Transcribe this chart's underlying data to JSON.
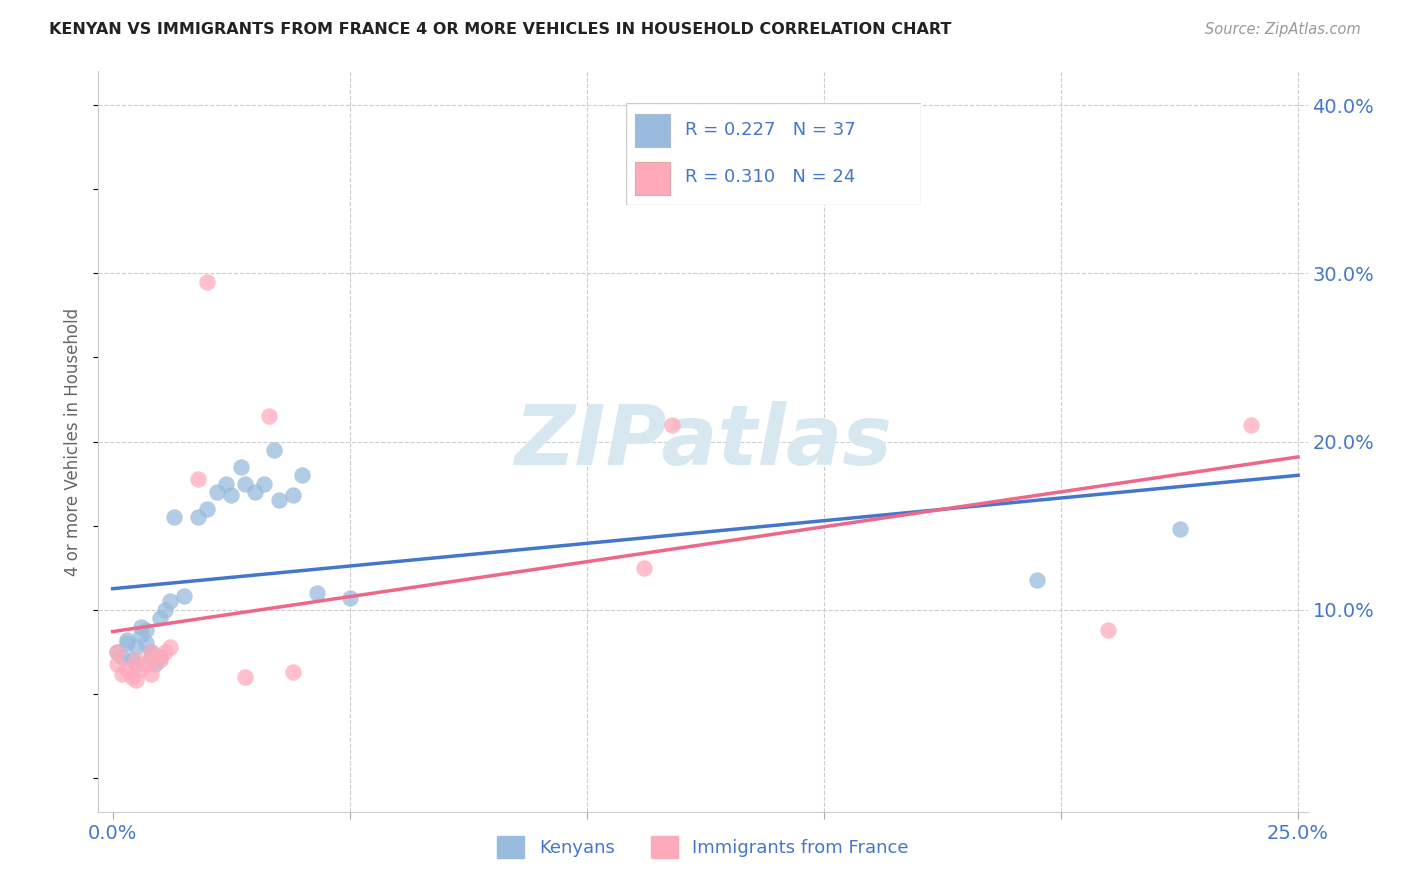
{
  "title": "KENYAN VS IMMIGRANTS FROM FRANCE 4 OR MORE VEHICLES IN HOUSEHOLD CORRELATION CHART",
  "source": "Source: ZipAtlas.com",
  "ylabel_label": "4 or more Vehicles in Household",
  "legend_label1": "Kenyans",
  "legend_label2": "Immigrants from France",
  "R1": 0.227,
  "N1": 37,
  "R2": 0.31,
  "N2": 24,
  "blue_scatter": "#99BBDD",
  "pink_scatter": "#FFAABB",
  "line_blue": "#4477CC",
  "line_pink": "#EE6688",
  "text_blue": "#4477CC",
  "grid_color": "#CCCCCC",
  "background_color": "#FFFFFF",
  "xlim": [
    0.0,
    0.25
  ],
  "ylim": [
    0.0,
    0.42
  ],
  "kenyan_x": [
    0.001,
    0.002,
    0.003,
    0.003,
    0.004,
    0.005,
    0.005,
    0.006,
    0.006,
    0.007,
    0.007,
    0.008,
    0.008,
    0.009,
    0.01,
    0.01,
    0.011,
    0.012,
    0.013,
    0.015,
    0.018,
    0.02,
    0.022,
    0.024,
    0.025,
    0.027,
    0.028,
    0.03,
    0.032,
    0.034,
    0.035,
    0.038,
    0.04,
    0.043,
    0.05,
    0.195,
    0.225
  ],
  "kenyan_y": [
    0.075,
    0.072,
    0.08,
    0.082,
    0.07,
    0.068,
    0.078,
    0.085,
    0.09,
    0.08,
    0.088,
    0.072,
    0.075,
    0.068,
    0.072,
    0.095,
    0.1,
    0.105,
    0.155,
    0.108,
    0.155,
    0.16,
    0.17,
    0.175,
    0.168,
    0.185,
    0.175,
    0.17,
    0.175,
    0.195,
    0.165,
    0.168,
    0.18,
    0.11,
    0.107,
    0.118,
    0.148
  ],
  "france_x": [
    0.001,
    0.001,
    0.002,
    0.003,
    0.004,
    0.005,
    0.005,
    0.006,
    0.007,
    0.008,
    0.008,
    0.009,
    0.01,
    0.011,
    0.012,
    0.018,
    0.02,
    0.028,
    0.033,
    0.038,
    0.112,
    0.118,
    0.21,
    0.24
  ],
  "france_y": [
    0.068,
    0.075,
    0.062,
    0.065,
    0.06,
    0.058,
    0.07,
    0.065,
    0.068,
    0.062,
    0.075,
    0.072,
    0.07,
    0.075,
    0.078,
    0.178,
    0.295,
    0.06,
    0.215,
    0.063,
    0.125,
    0.21,
    0.088,
    0.21
  ]
}
